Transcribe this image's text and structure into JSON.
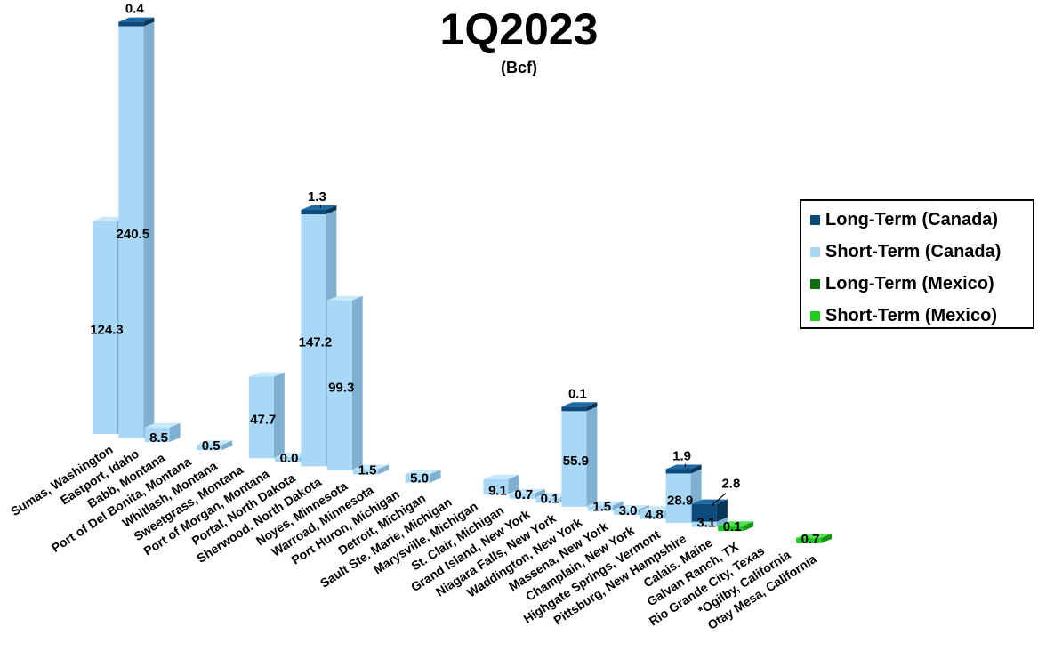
{
  "chart_data": {
    "type": "bar",
    "title": "1Q2023",
    "subtitle": "(Bcf)",
    "stacked": true,
    "three_d": true,
    "legend": [
      {
        "name": "Long-Term (Canada)",
        "color": "#0b4a7a"
      },
      {
        "name": "Short-Term (Canada)",
        "color": "#a8d8f6"
      },
      {
        "name": "Long-Term (Mexico)",
        "color": "#0e6e0e"
      },
      {
        "name": "Short-Term (Mexico)",
        "color": "#1ecb1e"
      }
    ],
    "legend_position": "right",
    "categories": [
      "Sumas, Washington",
      "Eastport, Idaho",
      "Babb, Montana",
      "Port of Del Bonita, Montana",
      "Whitlash, Montana",
      "Sweetgrass, Montana",
      "Port of Morgan, Montana",
      "Portal, North Dakota",
      "Sherwood, North Dakota",
      "Noyes, Minnesota",
      "Warroad, Minnesota",
      "Port Huron, Michigan",
      "Detroit, Michigan",
      "Sault Ste. Marie, Michigan",
      "Marysville, Michigan",
      "St. Clair, Michigan",
      "Grand Island, New York",
      "Niagara Falls, New York",
      "Waddington, New York",
      "Massena, New York",
      "Champlain, New York",
      "Highgate Springs, Vermont",
      "Pittsburg, New Hampshire",
      "Calais, Maine",
      "Galvan Ranch, TX",
      "Rio Grande City, Texas",
      "*Ogilby, California",
      "Otay Mesa, California"
    ],
    "bars": [
      {
        "label": "124.3",
        "short_term": 124.3,
        "long_term": 0,
        "region": "canada"
      },
      {
        "label": "240.5",
        "short_term": 240.5,
        "long_term": 0.4,
        "long_label": "0.4",
        "region": "canada"
      },
      {
        "label": "8.5",
        "short_term": 8.5,
        "long_term": 0,
        "region": "canada"
      },
      null,
      {
        "label": "0.5",
        "short_term": 0.5,
        "long_term": 0,
        "region": "canada"
      },
      null,
      {
        "label": "47.7",
        "short_term": 47.7,
        "long_term": 0,
        "region": "canada"
      },
      {
        "label": "0.0",
        "short_term": 0.0,
        "long_term": 0,
        "region": "canada"
      },
      {
        "label": "147.2",
        "short_term": 147.2,
        "long_term": 1.3,
        "long_label": "1.3",
        "region": "canada"
      },
      {
        "label": "99.3",
        "short_term": 99.3,
        "long_term": 0,
        "region": "canada"
      },
      {
        "label": "1.5",
        "short_term": 1.5,
        "long_term": 0,
        "region": "canada"
      },
      null,
      {
        "label": "5.0",
        "short_term": 5.0,
        "long_term": 0,
        "region": "canada"
      },
      null,
      null,
      {
        "label": "9.1",
        "short_term": 9.1,
        "long_term": 0,
        "region": "canada"
      },
      {
        "label": "0.7",
        "short_term": 0.7,
        "long_term": 0,
        "region": "canada"
      },
      {
        "label": "0.1",
        "short_term": 0.1,
        "long_term": 0,
        "region": "canada"
      },
      {
        "label": "55.9",
        "short_term": 55.9,
        "long_term": 0.1,
        "long_label": "0.1",
        "region": "canada"
      },
      {
        "label": "1.5",
        "short_term": 1.5,
        "long_term": 0,
        "region": "canada"
      },
      {
        "label": "3.0",
        "short_term": 3.0,
        "long_term": 0,
        "region": "canada"
      },
      {
        "label": "4.8",
        "short_term": 4.8,
        "long_term": 0,
        "region": "canada"
      },
      {
        "label": "28.9",
        "short_term": 28.9,
        "long_term": 1.9,
        "long_label": "1.9",
        "region": "canada"
      },
      {
        "label": "3.1",
        "short_term": 3.1,
        "long_term": 2.8,
        "long_label": "2.8",
        "region": "canada"
      },
      {
        "label": "0.1",
        "short_term": 0.1,
        "long_term": 0,
        "region": "mexico"
      },
      null,
      null,
      {
        "label": "0.7",
        "short_term": 0.7,
        "long_term": 0,
        "region": "mexico"
      }
    ]
  }
}
